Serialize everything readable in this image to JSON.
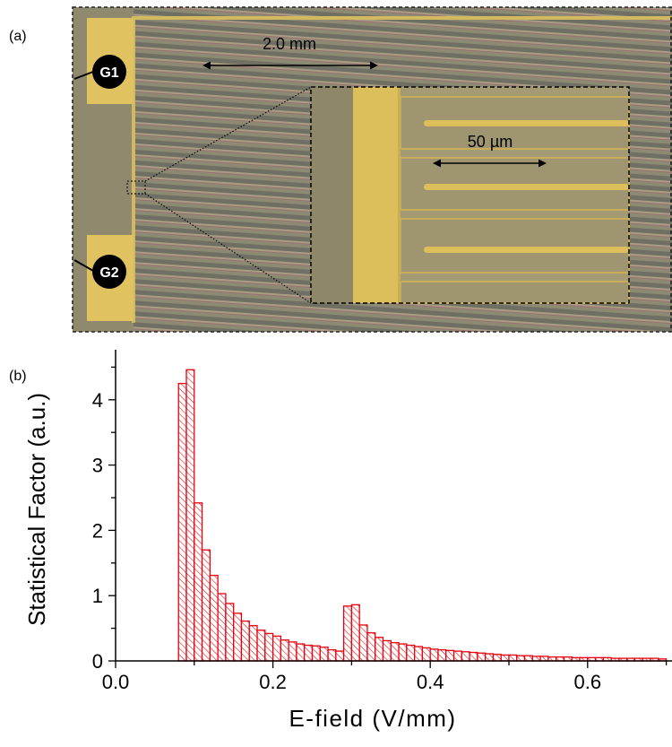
{
  "panel_a": {
    "label": "(a)",
    "scale_main": "2.0 mm",
    "scale_inset": "50 µm",
    "pad_top": "G1",
    "pad_bottom": "G2"
  },
  "panel_b": {
    "label": "(b)"
  },
  "colors": {
    "bar_stroke": "#e8000b",
    "electrode_gold": "#dcbf5a",
    "substrate": "#8f8a6e"
  },
  "chart_data": {
    "type": "bar",
    "title": "",
    "xlabel": "E-field (V/mm)",
    "ylabel": "Statistical Factor (a.u.)",
    "xlim": [
      0.0,
      0.7
    ],
    "ylim": [
      0,
      4.8
    ],
    "xticks": [
      "0.0",
      "0.2",
      "0.4",
      "0.6"
    ],
    "yticks": [
      "0",
      "1",
      "2",
      "3",
      "4"
    ],
    "bin_width": 0.01,
    "bins_left": [
      0.08,
      0.09,
      0.1,
      0.11,
      0.12,
      0.13,
      0.14,
      0.15,
      0.16,
      0.17,
      0.18,
      0.19,
      0.2,
      0.21,
      0.22,
      0.23,
      0.24,
      0.25,
      0.26,
      0.27,
      0.28,
      0.29,
      0.3,
      0.31,
      0.32,
      0.33,
      0.34,
      0.35,
      0.36,
      0.37,
      0.38,
      0.39,
      0.4,
      0.41,
      0.42,
      0.43,
      0.44,
      0.45,
      0.46,
      0.47,
      0.48,
      0.49,
      0.5,
      0.51,
      0.52,
      0.53,
      0.54,
      0.55,
      0.56,
      0.57,
      0.58,
      0.59,
      0.6,
      0.61,
      0.62,
      0.63,
      0.64,
      0.65,
      0.66,
      0.67,
      0.68,
      0.69
    ],
    "values": [
      4.25,
      4.46,
      2.42,
      1.7,
      1.31,
      1.03,
      0.88,
      0.73,
      0.61,
      0.54,
      0.47,
      0.42,
      0.38,
      0.32,
      0.29,
      0.26,
      0.24,
      0.23,
      0.21,
      0.17,
      0.15,
      0.84,
      0.86,
      0.55,
      0.43,
      0.36,
      0.31,
      0.28,
      0.26,
      0.24,
      0.22,
      0.2,
      0.18,
      0.17,
      0.16,
      0.15,
      0.14,
      0.13,
      0.12,
      0.11,
      0.1,
      0.09,
      0.09,
      0.08,
      0.08,
      0.07,
      0.07,
      0.06,
      0.06,
      0.06,
      0.05,
      0.05,
      0.05,
      0.05,
      0.05,
      0.04,
      0.04,
      0.04,
      0.04,
      0.04,
      0.04,
      0.03
    ],
    "grid": false,
    "legend": "none"
  }
}
